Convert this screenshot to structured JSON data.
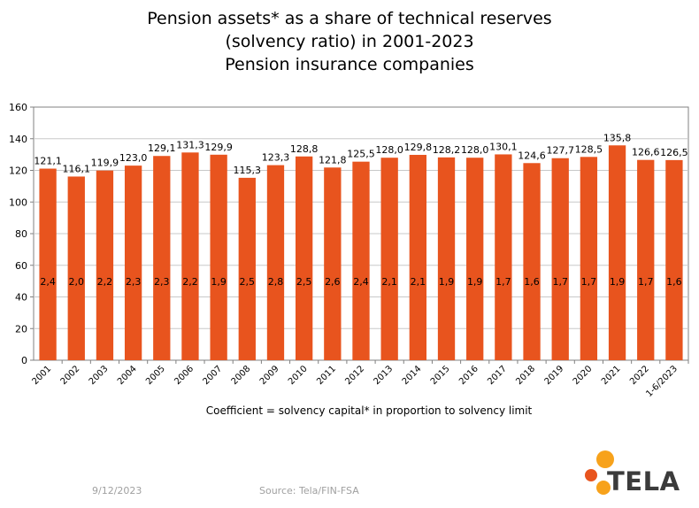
{
  "title_lines": [
    "Pension assets* as a share of technical reserves",
    "(solvency ratio) in 2001-2023",
    "Pension insurance companies"
  ],
  "note": "Coefficient = solvency capital* in proportion to solvency limit",
  "footer": {
    "date": "9/12/2023",
    "source": "Source: Tela/FIN-FSA"
  },
  "logo": {
    "text": "TELA",
    "colors": [
      "#f7a21b",
      "#e8541e"
    ]
  },
  "colors": {
    "bar": "#e8541e",
    "grid": "#c8c8c8",
    "axis": "#808080"
  },
  "chart_data": {
    "type": "bar",
    "categories": [
      "2001",
      "2002",
      "2003",
      "2004",
      "2005",
      "2006",
      "2007",
      "2008",
      "2009",
      "2010",
      "2011",
      "2012",
      "2013",
      "2014",
      "2015",
      "2016",
      "2017",
      "2018",
      "2019",
      "2020",
      "2021",
      "2022",
      "1-6/2023"
    ],
    "values": [
      121.1,
      116.1,
      119.9,
      123.0,
      129.1,
      131.3,
      129.9,
      115.3,
      123.3,
      128.8,
      121.8,
      125.5,
      128.0,
      129.8,
      128.2,
      128.0,
      130.1,
      124.6,
      127.7,
      128.5,
      135.8,
      126.6,
      126.5
    ],
    "value_labels": [
      "121,1",
      "116,1",
      "119,9",
      "123,0",
      "129,1",
      "131,3",
      "129,9",
      "115,3",
      "123,3",
      "128,8",
      "121,8",
      "125,5",
      "128,0",
      "129,8",
      "128,2",
      "128,0",
      "130,1",
      "124,6",
      "127,7",
      "128,5",
      "135,8",
      "126,6",
      "126,5"
    ],
    "coefficients": [
      "2,4",
      "2,0",
      "2,2",
      "2,3",
      "2,3",
      "2,2",
      "1,9",
      "2,5",
      "2,8",
      "2,5",
      "2,6",
      "2,4",
      "2,1",
      "2,1",
      "1,9",
      "1,9",
      "1,7",
      "1,6",
      "1,7",
      "1,7",
      "1,9",
      "1,7",
      "1,6"
    ],
    "ylim": [
      0,
      160
    ],
    "yticks": [
      0,
      20,
      40,
      60,
      80,
      100,
      120,
      140,
      160
    ],
    "grid": true,
    "xlabel": "",
    "ylabel": ""
  }
}
